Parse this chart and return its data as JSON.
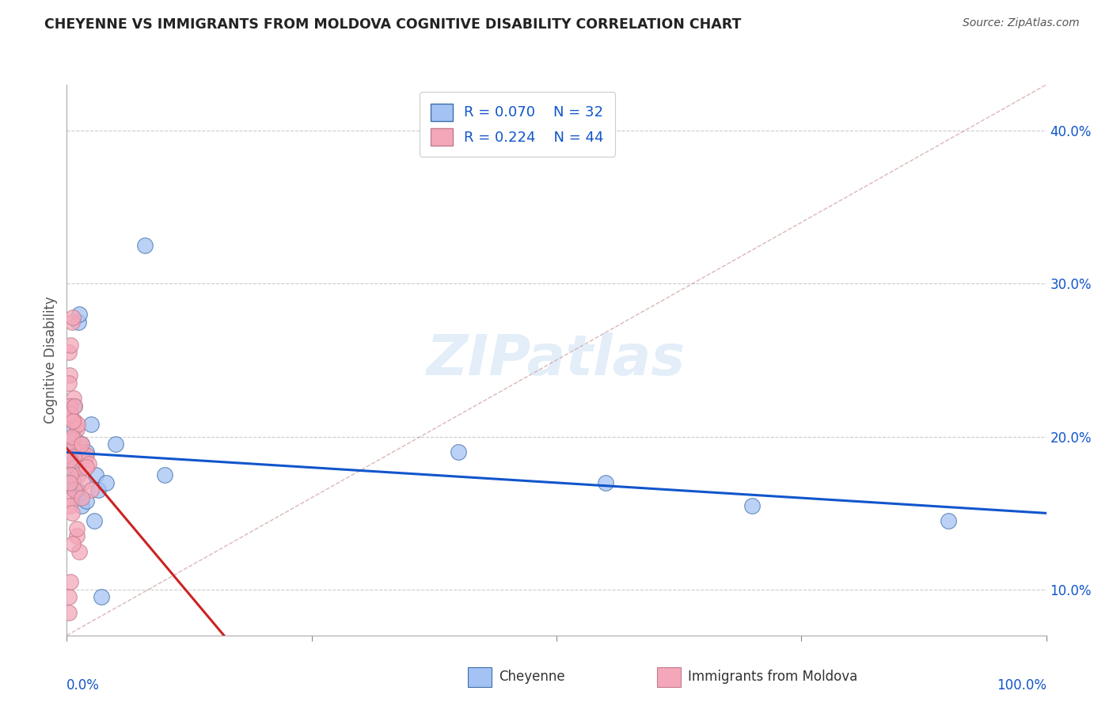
{
  "title": "CHEYENNE VS IMMIGRANTS FROM MOLDOVA COGNITIVE DISABILITY CORRELATION CHART",
  "source": "Source: ZipAtlas.com",
  "ylabel": "Cognitive Disability",
  "watermark": "ZIPatlas",
  "legend_blue_r": "R = 0.070",
  "legend_blue_n": "N = 32",
  "legend_pink_r": "R = 0.224",
  "legend_pink_n": "N = 44",
  "blue_fill": "#a4c2f4",
  "blue_edge": "#3d6fa8",
  "pink_fill": "#f4a7b9",
  "pink_edge": "#c47a8a",
  "blue_line_color": "#1155cc",
  "pink_line_color": "#cc2222",
  "diag_line_color": "#cc9999",
  "axis_label_color": "#1155cc",
  "title_color": "#222222",
  "cheyenne_points_x": [
    0.5,
    0.8,
    0.6,
    1.2,
    1.3,
    0.7,
    0.9,
    1.1,
    1.5,
    2.0,
    2.5,
    3.0,
    3.2,
    4.0,
    5.0,
    0.4,
    0.6,
    0.8,
    1.0,
    1.2,
    1.5,
    2.0,
    2.8,
    3.5,
    10.0,
    40.0,
    55.0,
    70.0,
    90.0,
    8.0,
    0.3,
    0.2
  ],
  "cheyenne_points_y": [
    18.5,
    22.0,
    19.0,
    27.5,
    28.0,
    20.5,
    19.8,
    18.0,
    19.5,
    19.0,
    20.8,
    17.5,
    16.5,
    17.0,
    19.5,
    17.8,
    17.2,
    18.8,
    16.5,
    16.0,
    15.5,
    15.8,
    14.5,
    9.5,
    17.5,
    19.0,
    17.0,
    15.5,
    14.5,
    32.5,
    17.0,
    16.8
  ],
  "moldova_points_x": [
    0.2,
    0.4,
    0.5,
    0.6,
    0.3,
    0.7,
    0.8,
    1.0,
    1.1,
    1.3,
    1.5,
    1.8,
    2.0,
    2.2,
    0.2,
    0.3,
    0.4,
    0.5,
    0.6,
    0.7,
    0.9,
    1.2,
    1.6,
    2.5,
    0.4,
    1.0,
    1.3,
    0.2,
    0.6,
    0.3,
    0.5,
    0.8,
    1.0,
    0.2,
    0.4,
    1.5,
    0.3,
    0.4,
    0.5,
    0.6,
    0.8,
    1.5,
    2.0,
    0.3
  ],
  "moldova_points_y": [
    25.5,
    26.0,
    27.5,
    27.8,
    24.0,
    22.5,
    21.0,
    20.5,
    20.8,
    19.5,
    19.0,
    18.5,
    18.8,
    18.2,
    23.5,
    22.0,
    21.5,
    19.8,
    19.2,
    18.7,
    18.0,
    17.5,
    17.0,
    16.5,
    16.0,
    13.5,
    12.5,
    9.5,
    13.0,
    15.5,
    15.0,
    16.5,
    14.0,
    8.5,
    10.5,
    16.0,
    18.5,
    17.5,
    20.0,
    21.0,
    22.0,
    19.5,
    18.0,
    17.0
  ],
  "xlim_pct": [
    0,
    100
  ],
  "ylim_pct": [
    7,
    43
  ],
  "yticks_pct": [
    10,
    20,
    30,
    40
  ],
  "background_color": "#ffffff",
  "grid_color": "#cccccc"
}
